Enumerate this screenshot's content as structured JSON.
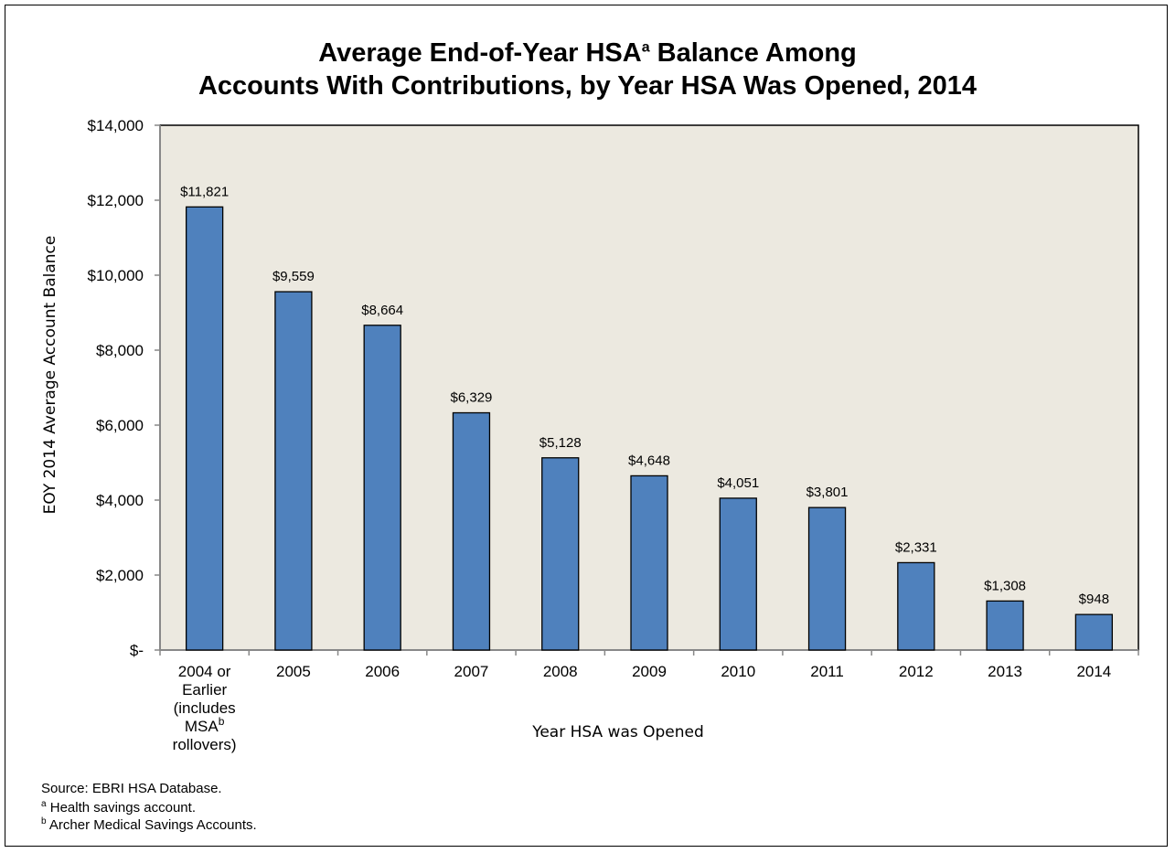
{
  "chart_data": {
    "type": "bar",
    "title_line1_pre": "Average End-of-Year HSA",
    "title_line1_sup": "a",
    "title_line1_post": " Balance Among",
    "title_line2": "Accounts With Contributions, by Year HSA Was Opened, 2014",
    "xlabel": "Year HSA was Opened",
    "ylabel": "EOY 2014 Average Account Balance",
    "ylim": [
      0,
      14000
    ],
    "yticks": [
      0,
      2000,
      4000,
      6000,
      8000,
      10000,
      12000,
      14000
    ],
    "ytick_labels": [
      "$-",
      "$2,000",
      "$4,000",
      "$6,000",
      "$8,000",
      "$10,000",
      "$12,000",
      "$14,000"
    ],
    "categories": [
      "2004 or Earlier (includes MSAb rollovers)",
      "2005",
      "2006",
      "2007",
      "2008",
      "2009",
      "2010",
      "2011",
      "2012",
      "2013",
      "2014"
    ],
    "category_first_lines": [
      "2004 or",
      "Earlier",
      "(includes",
      "MSA",
      "rollovers)"
    ],
    "category_first_sup": "b",
    "values": [
      11821,
      9559,
      8664,
      6329,
      5128,
      4648,
      4051,
      3801,
      2331,
      1308,
      948
    ],
    "data_labels": [
      "$11,821",
      "$9,559",
      "$8,664",
      "$6,329",
      "$5,128",
      "$4,648",
      "$4,051",
      "$3,801",
      "$2,331",
      "$1,308",
      "$948"
    ],
    "grid": false,
    "bar_color": "#4f81bd",
    "plot_background": "#ece9e0"
  },
  "footnotes": {
    "source": "Source: EBRI HSA Database.",
    "a_mark": "a",
    "a_text": " Health savings account.",
    "b_mark": "b",
    "b_text": " Archer Medical Savings Accounts."
  }
}
